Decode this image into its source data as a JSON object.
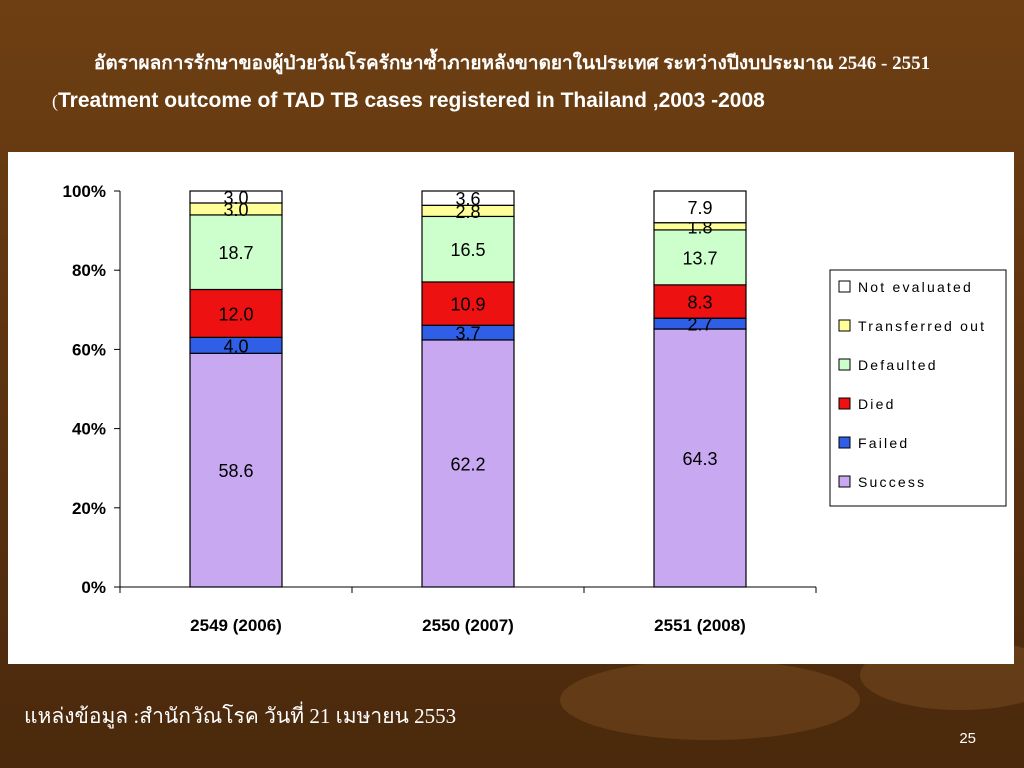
{
  "title_thai": "อัตราผลการรักษาของผู้ป่วยวัณโรครักษาซ้ำภายหลังขาดยาในประเทศ ระหว่างปีงบประมาณ 2546 - 2551",
  "title_en_paren": "(",
  "title_en": "Treatment outcome of TAD TB cases registered in Thailand ,2003 -2008",
  "source": "แหล่งข้อมูล :สำนักวัณโรค วันที่ 21 เมษายน 2553",
  "page_number": "25",
  "chart_data": {
    "type": "bar",
    "stacked": true,
    "percent": true,
    "categories": [
      "2549 (2006)",
      "2550 (2007)",
      "2551 (2008)"
    ],
    "series": [
      {
        "name": "Success",
        "color": "#c8a8f0",
        "values": [
          58.6,
          62.2,
          64.3
        ]
      },
      {
        "name": "Failed",
        "color": "#2f5fe6",
        "values": [
          4.0,
          3.7,
          2.7
        ]
      },
      {
        "name": "Died",
        "color": "#ee1111",
        "values": [
          12.0,
          10.9,
          8.3
        ]
      },
      {
        "name": "Defaulted",
        "color": "#ccffcc",
        "values": [
          18.7,
          16.5,
          13.7
        ]
      },
      {
        "name": "Transferred out",
        "color": "#ffff99",
        "values": [
          3.0,
          2.8,
          1.8
        ]
      },
      {
        "name": "Not evaluated",
        "color": "#ffffff",
        "values": [
          3.0,
          3.6,
          7.9
        ]
      }
    ],
    "yticks": [
      "0%",
      "20%",
      "40%",
      "60%",
      "80%",
      "100%"
    ],
    "ylim": [
      0,
      100
    ],
    "legend_labels": [
      "Not evaluated",
      "Transferred out",
      "Defaulted",
      "Died",
      "Failed",
      "Success"
    ],
    "legend_position": "right"
  }
}
